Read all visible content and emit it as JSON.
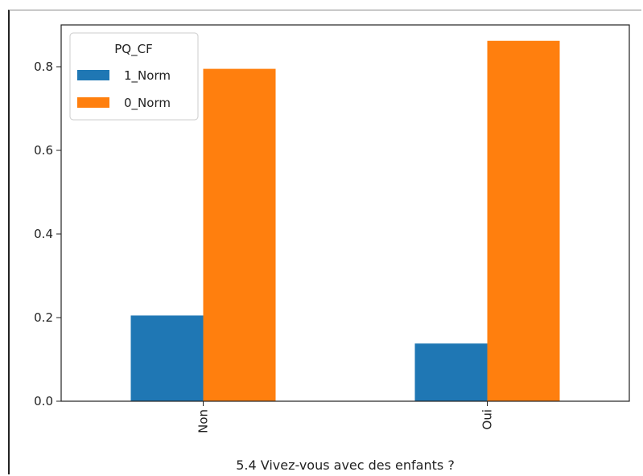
{
  "chart_data": {
    "type": "bar",
    "xlabel": "5.4 Vivez-vous avec des enfants ?",
    "ylabel": "",
    "categories": [
      "Non",
      "Oui"
    ],
    "series": [
      {
        "name": "1_Norm",
        "color": "#1f77b4",
        "values": [
          0.205,
          0.138
        ]
      },
      {
        "name": "0_Norm",
        "color": "#ff7f0e",
        "values": [
          0.795,
          0.862
        ]
      }
    ],
    "ylim": [
      0,
      0.9
    ],
    "yticks": [
      "0.0",
      "0.2",
      "0.4",
      "0.6",
      "0.8"
    ],
    "legend": {
      "title": "PQ_CF",
      "placement": "top-left"
    },
    "grid": false
  }
}
